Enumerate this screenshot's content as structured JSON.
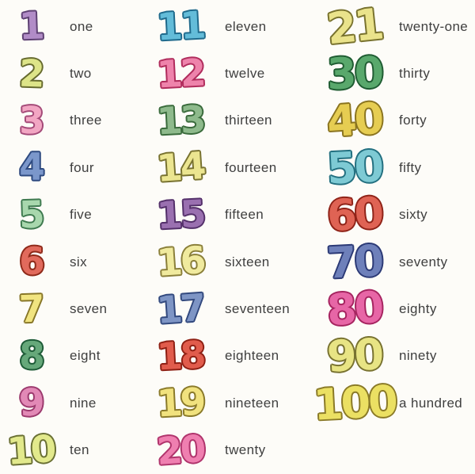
{
  "title": "numbers-and-words-chart",
  "background": "#fdfcf8",
  "word_color": "#3f3f3f",
  "columns": [
    {
      "name": "ones",
      "items": [
        {
          "numeral": "1",
          "word": "one",
          "fill": "#b18cc7",
          "outline": "#5e4173",
          "tilt": -2
        },
        {
          "numeral": "2",
          "word": "two",
          "fill": "#dde488",
          "outline": "#666a2e",
          "tilt": 2
        },
        {
          "numeral": "3",
          "word": "three",
          "fill": "#f2a6c3",
          "outline": "#a44a78",
          "tilt": -1
        },
        {
          "numeral": "4",
          "word": "four",
          "fill": "#7b97cb",
          "outline": "#2e4a80",
          "tilt": 0
        },
        {
          "numeral": "5",
          "word": "five",
          "fill": "#a8d7ad",
          "outline": "#3f7a50",
          "tilt": -2
        },
        {
          "numeral": "6",
          "word": "six",
          "fill": "#e16a5c",
          "outline": "#8f2a1a",
          "tilt": 0
        },
        {
          "numeral": "7",
          "word": "seven",
          "fill": "#f1e480",
          "outline": "#877628",
          "tilt": -2
        },
        {
          "numeral": "8",
          "word": "eight",
          "fill": "#66a87a",
          "outline": "#1f5c38",
          "tilt": 0
        },
        {
          "numeral": "9",
          "word": "nine",
          "fill": "#e289b6",
          "outline": "#9c3a6e",
          "tilt": -2
        },
        {
          "numeral": "10",
          "word": "ten",
          "fill": "#e2e98c",
          "outline": "#6a7034",
          "tilt": -4
        }
      ]
    },
    {
      "name": "teens",
      "items": [
        {
          "numeral": "11",
          "word": "eleven",
          "fill": "#63bcd9",
          "outline": "#1f6a8c",
          "tilt": -3
        },
        {
          "numeral": "12",
          "word": "twelve",
          "fill": "#ee83ab",
          "outline": "#b02c5c",
          "tilt": -3
        },
        {
          "numeral": "13",
          "word": "thirteen",
          "fill": "#8eba8c",
          "outline": "#3a6b3c",
          "tilt": -3
        },
        {
          "numeral": "14",
          "word": "fourteen",
          "fill": "#ebe590",
          "outline": "#787230",
          "tilt": -4
        },
        {
          "numeral": "15",
          "word": "fifteen",
          "fill": "#9a70b0",
          "outline": "#54306a",
          "tilt": -3
        },
        {
          "numeral": "16",
          "word": "sixteen",
          "fill": "#f0ea9e",
          "outline": "#8a7f3a",
          "tilt": -4
        },
        {
          "numeral": "17",
          "word": "seventeen",
          "fill": "#7e95c5",
          "outline": "#32497e",
          "tilt": -4
        },
        {
          "numeral": "18",
          "word": "eighteen",
          "fill": "#e15c4c",
          "outline": "#8f2014",
          "tilt": -3
        },
        {
          "numeral": "19",
          "word": "nineteen",
          "fill": "#f1e27e",
          "outline": "#8a7a2a",
          "tilt": -3
        },
        {
          "numeral": "20",
          "word": "twenty",
          "fill": "#ef7fb0",
          "outline": "#b0346c",
          "tilt": -4
        }
      ]
    },
    {
      "name": "tens",
      "items": [
        {
          "numeral": "21",
          "word": "twenty-one",
          "fill": "#eae38b",
          "outline": "#78722e",
          "tilt": -6
        },
        {
          "numeral": "30",
          "word": "thirty",
          "fill": "#59a86c",
          "outline": "#1f5c32",
          "tilt": -2
        },
        {
          "numeral": "40",
          "word": "forty",
          "fill": "#e6cd52",
          "outline": "#8a7420",
          "tilt": -4
        },
        {
          "numeral": "50",
          "word": "fifty",
          "fill": "#7ecad4",
          "outline": "#237080",
          "tilt": -3
        },
        {
          "numeral": "60",
          "word": "sixty",
          "fill": "#df6354",
          "outline": "#8f2318",
          "tilt": -4
        },
        {
          "numeral": "70",
          "word": "seventy",
          "fill": "#6e80ba",
          "outline": "#2c3a76",
          "tilt": -3
        },
        {
          "numeral": "80",
          "word": "eighty",
          "fill": "#e766a6",
          "outline": "#a62460",
          "tilt": -4
        },
        {
          "numeral": "90",
          "word": "ninety",
          "fill": "#e8e484",
          "outline": "#787230",
          "tilt": -3
        },
        {
          "numeral": "100",
          "word": "a hundred",
          "fill": "#ebe063",
          "outline": "#8a7a28",
          "tilt": -3
        }
      ]
    }
  ]
}
